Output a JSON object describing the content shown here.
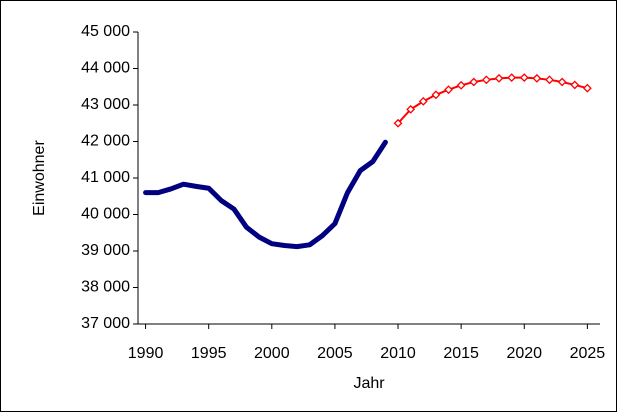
{
  "chart_data": {
    "type": "line",
    "xlabel": "Jahr",
    "ylabel": "Einwohner",
    "series": [
      {
        "color": "#000080",
        "linewidth": 5,
        "marker": "none",
        "x": [
          1990,
          1991,
          1992,
          1993,
          1994,
          1995,
          1996,
          1997,
          1998,
          1999,
          2000,
          2001,
          2002,
          2003,
          2004,
          2005,
          2006,
          2007,
          2008,
          2009
        ],
        "values": [
          40600,
          40600,
          40700,
          40830,
          40770,
          40720,
          40380,
          40150,
          39650,
          39380,
          39200,
          39150,
          39120,
          39170,
          39420,
          39750,
          40600,
          41200,
          41450,
          41980
        ]
      },
      {
        "color": "#ff0000",
        "linewidth": 2,
        "marker": "diamond",
        "x": [
          2010,
          2011,
          2012,
          2013,
          2014,
          2015,
          2016,
          2017,
          2018,
          2019,
          2020,
          2021,
          2022,
          2023,
          2024,
          2025
        ],
        "values": [
          42500,
          42880,
          43100,
          43280,
          43420,
          43540,
          43630,
          43690,
          43730,
          43750,
          43750,
          43730,
          43690,
          43630,
          43550,
          43460
        ]
      }
    ],
    "xlim": [
      1989.4,
      2026
    ],
    "xticks": [
      1990,
      1995,
      2000,
      2005,
      2010,
      2015,
      2020,
      2025
    ],
    "ylim": [
      37000,
      45000
    ],
    "yticks": [
      {
        "value": 37000,
        "label": "37 000"
      },
      {
        "value": 38000,
        "label": "38 000"
      },
      {
        "value": 39000,
        "label": "39 000"
      },
      {
        "value": 40000,
        "label": "40 000"
      },
      {
        "value": 41000,
        "label": "41 000"
      },
      {
        "value": 42000,
        "label": "42 000"
      },
      {
        "value": 43000,
        "label": "43 000"
      },
      {
        "value": 44000,
        "label": "44 000"
      },
      {
        "value": 45000,
        "label": "45 000"
      }
    ],
    "grid": false
  }
}
